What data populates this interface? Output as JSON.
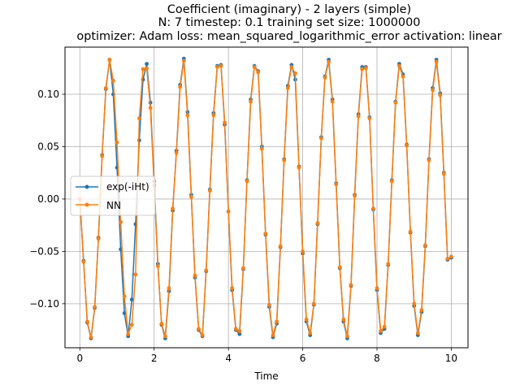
{
  "chart_data": {
    "type": "line",
    "title": [
      "Coefficient (imaginary) - 2 layers (simple)",
      "N: 7 timestep: 0.1 training set size: 1000000",
      "optimizer: Adam loss: mean_squared_logarithmic_error activation: linear"
    ],
    "xlabel": "Time",
    "ylabel": "",
    "xlim": [
      -0.4,
      10.45
    ],
    "ylim": [
      -0.142,
      0.145
    ],
    "xticks": [
      0,
      2,
      4,
      6,
      8,
      10
    ],
    "xtick_labels": [
      "0",
      "2",
      "4",
      "6",
      "8",
      "10"
    ],
    "yticks": [
      -0.1,
      -0.05,
      0.0,
      0.05,
      0.1
    ],
    "ytick_labels": [
      "−0.10",
      "−0.05",
      "0.00",
      "0.05",
      "0.10"
    ],
    "grid": true,
    "legend_position": "center-left",
    "x": [
      0.0,
      0.1,
      0.2,
      0.3,
      0.4,
      0.5,
      0.6,
      0.7,
      0.8,
      0.9,
      1.0,
      1.1,
      1.2,
      1.3,
      1.4,
      1.5,
      1.6,
      1.7,
      1.8,
      1.9,
      2.0,
      2.1,
      2.2,
      2.3,
      2.4,
      2.5,
      2.6,
      2.7,
      2.8,
      2.9,
      3.0,
      3.1,
      3.2,
      3.3,
      3.4,
      3.5,
      3.6,
      3.7,
      3.8,
      3.9,
      4.0,
      4.1,
      4.2,
      4.3,
      4.4,
      4.5,
      4.6,
      4.7,
      4.8,
      4.9,
      5.0,
      5.1,
      5.2,
      5.3,
      5.4,
      5.5,
      5.6,
      5.7,
      5.8,
      5.9,
      6.0,
      6.1,
      6.2,
      6.3,
      6.4,
      6.5,
      6.6,
      6.7,
      6.8,
      6.9,
      7.0,
      7.1,
      7.2,
      7.3,
      7.4,
      7.5,
      7.6,
      7.7,
      7.8,
      7.9,
      8.0,
      8.1,
      8.2,
      8.3,
      8.4,
      8.5,
      8.6,
      8.7,
      8.8,
      8.9,
      9.0,
      9.1,
      9.2,
      9.3,
      9.4,
      9.5,
      9.6,
      9.7,
      9.8,
      9.9,
      10.0
    ],
    "series": [
      {
        "name": "exp(-iHt)",
        "color": "#1f77b4",
        "values": [
          0.0,
          -0.059,
          -0.118,
          -0.133,
          -0.104,
          -0.037,
          0.042,
          0.105,
          0.133,
          0.1,
          0.03,
          -0.048,
          -0.109,
          -0.131,
          -0.096,
          -0.024,
          0.056,
          0.114,
          0.129,
          0.092,
          0.017,
          -0.062,
          -0.12,
          -0.133,
          -0.088,
          -0.011,
          0.046,
          0.109,
          0.134,
          0.083,
          0.004,
          -0.075,
          -0.125,
          -0.131,
          -0.069,
          0.009,
          0.082,
          0.127,
          0.128,
          0.071,
          -0.012,
          -0.087,
          -0.125,
          -0.129,
          -0.067,
          0.018,
          0.095,
          0.127,
          0.122,
          0.05,
          -0.034,
          -0.103,
          -0.132,
          -0.119,
          -0.046,
          0.038,
          0.108,
          0.128,
          0.114,
          0.031,
          -0.052,
          -0.117,
          -0.13,
          -0.101,
          -0.024,
          0.059,
          0.117,
          0.133,
          0.095,
          0.015,
          -0.066,
          -0.117,
          -0.133,
          -0.083,
          0.004,
          0.081,
          0.126,
          0.126,
          0.078,
          -0.01,
          -0.087,
          -0.128,
          -0.124,
          -0.063,
          0.018,
          0.093,
          0.129,
          0.119,
          0.052,
          -0.032,
          -0.102,
          -0.13,
          -0.108,
          -0.045,
          0.038,
          0.106,
          0.133,
          0.101,
          0.025,
          -0.058,
          -0.056
        ]
      },
      {
        "name": "NN",
        "color": "#ff7f0e",
        "values": [
          0.0,
          -0.06,
          -0.117,
          -0.132,
          -0.103,
          -0.038,
          0.041,
          0.106,
          0.133,
          0.113,
          0.054,
          -0.022,
          -0.093,
          -0.129,
          -0.12,
          -0.072,
          0.077,
          0.124,
          0.125,
          0.087,
          0.013,
          -0.064,
          -0.119,
          -0.131,
          -0.085,
          -0.009,
          0.044,
          0.107,
          0.132,
          0.08,
          0.002,
          -0.073,
          -0.124,
          -0.13,
          -0.068,
          0.008,
          0.08,
          0.126,
          0.127,
          0.073,
          -0.012,
          -0.085,
          -0.124,
          -0.126,
          -0.066,
          0.017,
          0.093,
          0.126,
          0.121,
          0.048,
          -0.033,
          -0.101,
          -0.13,
          -0.117,
          -0.045,
          0.037,
          0.106,
          0.126,
          0.12,
          0.03,
          -0.05,
          -0.115,
          -0.128,
          -0.1,
          -0.023,
          0.058,
          0.116,
          0.131,
          0.093,
          0.014,
          -0.065,
          -0.115,
          -0.131,
          -0.082,
          0.003,
          0.079,
          0.124,
          0.125,
          0.077,
          -0.009,
          -0.085,
          -0.126,
          -0.122,
          -0.062,
          0.017,
          0.092,
          0.127,
          0.117,
          0.051,
          -0.031,
          -0.1,
          -0.128,
          -0.106,
          -0.044,
          0.037,
          0.104,
          0.131,
          0.099,
          0.024,
          -0.057,
          -0.055
        ]
      }
    ]
  }
}
